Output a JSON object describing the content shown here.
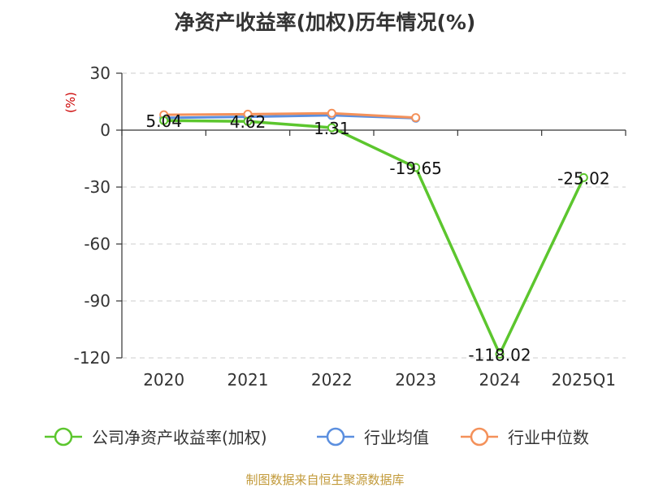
{
  "chart_data": {
    "type": "line",
    "title": "净资产收益率(加权)历年情况(%)",
    "ylabel": "(%)",
    "categories": [
      "2020",
      "2021",
      "2022",
      "2023",
      "2024",
      "2025Q1"
    ],
    "ylim": [
      -120,
      30
    ],
    "yticks": [
      30,
      0,
      -30,
      -60,
      -90,
      -120
    ],
    "ytick_labels": [
      "30",
      "0",
      "-30",
      "-60",
      "-90",
      "-120"
    ],
    "grid": true,
    "legend_position": "bottom",
    "series": [
      {
        "name": "公司净资产收益率(加权)",
        "color": "#5cc62e",
        "values": [
          5.04,
          4.62,
          1.31,
          -19.65,
          -118.02,
          -25.02
        ],
        "labels": [
          "5.04",
          "4.62",
          "1.31",
          "-19.65",
          "-118.02",
          "-25.02"
        ]
      },
      {
        "name": "行业均值",
        "color": "#5b8fdf",
        "values": [
          6.5,
          7.0,
          7.8,
          6.3,
          null,
          null
        ]
      },
      {
        "name": "行业中位数",
        "color": "#f4915a",
        "values": [
          8.1,
          8.4,
          8.9,
          6.6,
          null,
          null
        ]
      }
    ],
    "source": "制图数据来自恒生聚源数据库",
    "unit_color": "#cc0000",
    "source_color": "#c29a3a"
  }
}
